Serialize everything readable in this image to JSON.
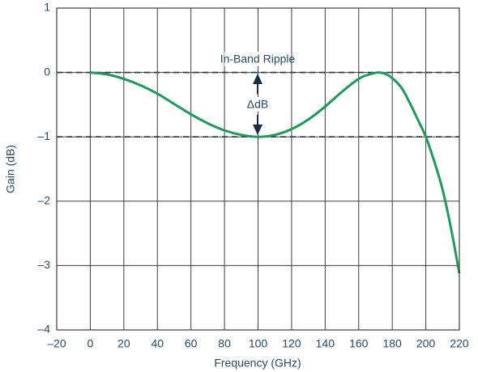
{
  "chart_data": {
    "type": "line",
    "x_label": "Frequency (GHz)",
    "y_label": "Gain (dB)",
    "annotations": [
      "In-Band Ripple",
      "ΔdB"
    ],
    "reference_lines": [
      0,
      -1
    ],
    "x": [
      0,
      10,
      20,
      30,
      40,
      50,
      60,
      70,
      80,
      90,
      100,
      110,
      120,
      130,
      140,
      150,
      160,
      165,
      172,
      178,
      185,
      190,
      195,
      200,
      205,
      210,
      215,
      220
    ],
    "series": [
      {
        "color": "#1f9a5c",
        "values": [
          0,
          -0.03,
          -0.1,
          -0.2,
          -0.33,
          -0.49,
          -0.65,
          -0.79,
          -0.9,
          -0.97,
          -1.0,
          -0.97,
          -0.88,
          -0.73,
          -0.53,
          -0.3,
          -0.1,
          -0.04,
          0,
          -0.05,
          -0.22,
          -0.45,
          -0.72,
          -1.0,
          -1.38,
          -1.82,
          -2.42,
          -3.12
        ]
      }
    ],
    "xlim": [
      -20,
      220
    ],
    "xticks": [
      {
        "value": -20,
        "label": "–20"
      },
      0,
      20,
      40,
      60,
      80,
      100,
      120,
      140,
      160,
      180,
      200,
      220
    ],
    "ylim": [
      -4,
      1
    ],
    "yticks": [
      {
        "value": -4,
        "label": "–4"
      },
      {
        "value": -3,
        "label": "–3"
      },
      {
        "value": -2,
        "label": "–2"
      },
      {
        "value": -1,
        "label": "–1"
      },
      0,
      1
    ],
    "grid": true
  }
}
